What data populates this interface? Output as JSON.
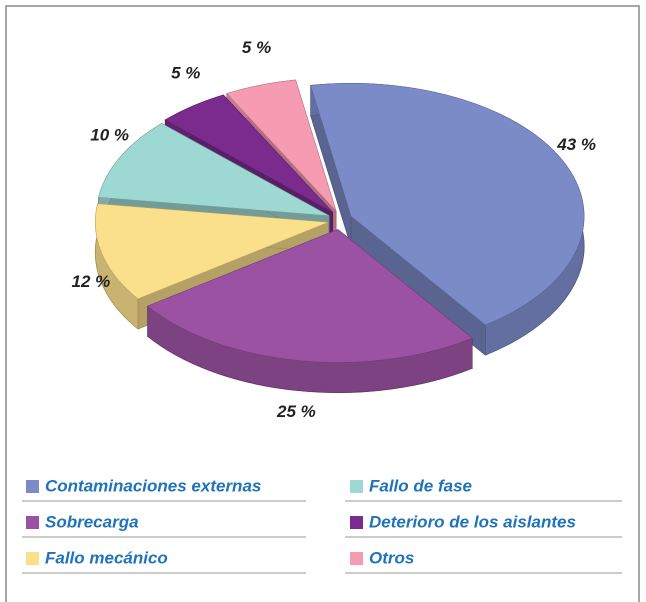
{
  "chart_data": {
    "type": "pie",
    "categories": [
      "Contaminaciones externas",
      "Sobrecarga",
      "Fallo mecánico",
      "Fallo de fase",
      "Deterioro de los aislantes",
      "Otros"
    ],
    "values": [
      43,
      25,
      12,
      10,
      5,
      5
    ],
    "value_labels": [
      "43 %",
      "25 %",
      "12 %",
      "10 %",
      "5 %",
      "5 %"
    ],
    "colors": [
      "#7b8bc8",
      "#9c52a2",
      "#fbe08c",
      "#9ed8d3",
      "#7a2b8d",
      "#f59cb2"
    ],
    "legend": "bottom"
  }
}
